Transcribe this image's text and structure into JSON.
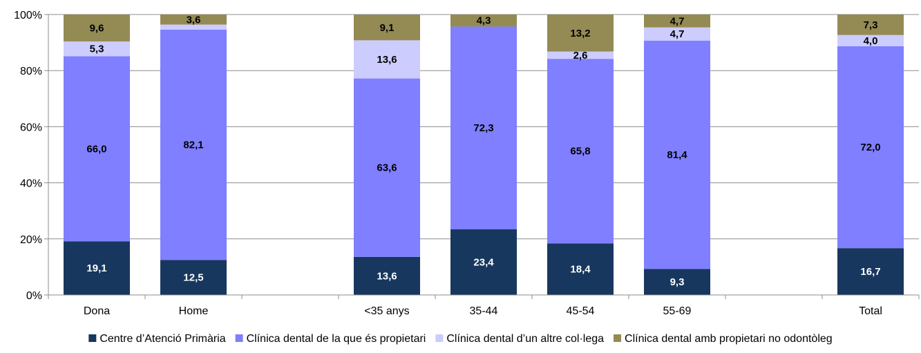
{
  "chart_data": {
    "type": "bar",
    "stacked": true,
    "percent": true,
    "categories": [
      "Dona",
      "Home",
      "",
      "<35 anys",
      "35-44",
      "45-54",
      "55-69",
      "",
      "Total"
    ],
    "series": [
      {
        "name": "Centre d’Atenció Primària",
        "color": "#17375e",
        "label_color": "#ffffff",
        "values": [
          19.1,
          12.5,
          null,
          13.6,
          23.4,
          18.4,
          9.3,
          null,
          16.7
        ],
        "labels": [
          "19,1",
          "12,5",
          "",
          "13,6",
          "23,4",
          "18,4",
          "9,3",
          "",
          "16,7"
        ]
      },
      {
        "name": "Clínica dental de la que és propietari",
        "color": "#7f7fff",
        "label_color": "#000000",
        "values": [
          66.0,
          82.1,
          null,
          63.6,
          72.3,
          65.8,
          81.4,
          null,
          72.0
        ],
        "labels": [
          "66,0",
          "82,1",
          "",
          "63,6",
          "72,3",
          "65,8",
          "81,4",
          "",
          "72,0"
        ]
      },
      {
        "name": "Clínica dental d’un altre col·lega",
        "color": "#ccccff",
        "label_color": "#000000",
        "values": [
          5.3,
          1.8,
          null,
          13.6,
          0.0,
          2.6,
          4.7,
          null,
          4.0
        ],
        "labels": [
          "5,3",
          "",
          "",
          "13,6",
          "",
          "2,6",
          "4,7",
          "",
          "4,0"
        ]
      },
      {
        "name": "Clínica dental amb propietari no odontòleg",
        "color": "#948a54",
        "label_color": "#000000",
        "values": [
          9.6,
          3.6,
          null,
          9.1,
          4.3,
          13.2,
          4.7,
          null,
          7.3
        ],
        "labels": [
          "9,6",
          "3,6",
          "",
          "9,1",
          "4,3",
          "13,2",
          "4,7",
          "",
          "7,3"
        ]
      }
    ],
    "y_ticks": [
      "0%",
      "20%",
      "40%",
      "60%",
      "80%",
      "100%"
    ],
    "ylim": [
      0,
      100
    ],
    "grid": true,
    "legend_position": "bottom"
  }
}
